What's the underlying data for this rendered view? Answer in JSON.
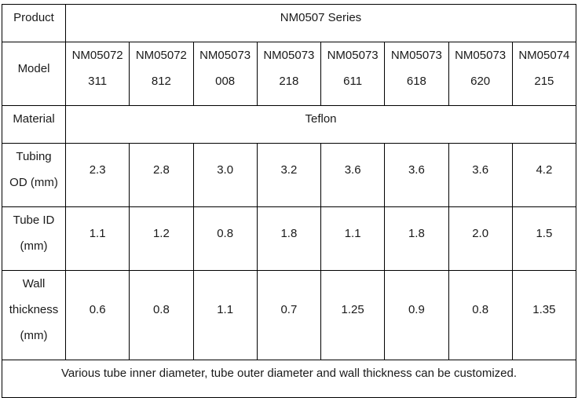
{
  "chart_data": {
    "type": "table",
    "title": "NM0507 Series tubing specification table",
    "row_labels": {
      "product": "Product",
      "model": "Model",
      "material": "Material",
      "tubing_od": [
        "Tubing",
        "OD (mm)"
      ],
      "tube_id": [
        "Tube ID",
        "(mm)"
      ],
      "wall_thickness": [
        "Wall",
        "thickness",
        "(mm)"
      ]
    },
    "product_value": "NM0507 Series",
    "models": [
      {
        "line1": "NM05072",
        "line2": "311"
      },
      {
        "line1": "NM05072",
        "line2": "812"
      },
      {
        "line1": "NM05073",
        "line2": "008"
      },
      {
        "line1": "NM05073",
        "line2": "218"
      },
      {
        "line1": "NM05073",
        "line2": "611"
      },
      {
        "line1": "NM05073",
        "line2": "618"
      },
      {
        "line1": "NM05073",
        "line2": "620"
      },
      {
        "line1": "NM05074",
        "line2": "215"
      }
    ],
    "material_value": "Teflon",
    "tubing_od_values": [
      "2.3",
      "2.8",
      "3.0",
      "3.2",
      "3.6",
      "3.6",
      "3.6",
      "4.2"
    ],
    "tube_id_values": [
      "1.1",
      "1.2",
      "0.8",
      "1.8",
      "1.1",
      "1.8",
      "2.0",
      "1.5"
    ],
    "wall_thickness_values": [
      "0.6",
      "0.8",
      "1.1",
      "0.7",
      "1.25",
      "0.9",
      "0.8",
      "1.35"
    ],
    "note": "Various tube inner diameter, tube outer diameter and wall thickness can be customized.",
    "colors": {
      "border": "#000000",
      "text": "#1a1a1a",
      "background": "#ffffff"
    }
  }
}
